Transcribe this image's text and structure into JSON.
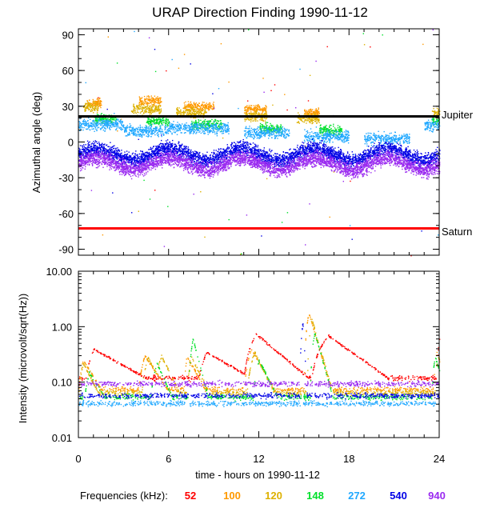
{
  "chart_data": [
    {
      "type": "scatter",
      "title": "URAP Direction Finding  1990-11-12",
      "xlabel": "",
      "ylabel": "Azimuthal angle (deg)",
      "xlim": [
        0,
        24
      ],
      "ylim": [
        -95,
        95
      ],
      "y_ticks": [
        90,
        60,
        30,
        0,
        -30,
        -60,
        -90
      ],
      "reference_lines": [
        {
          "name": "Jupiter",
          "value": 21.5,
          "color": "#000000"
        },
        {
          "name": "Saturn",
          "value": -72.5,
          "color": "#ff0000"
        }
      ],
      "series": [
        {
          "name": "52",
          "color": "#ff0000",
          "centers": [
            [
              0,
              24,
              0
            ]
          ],
          "spread": 0
        },
        {
          "name": "100",
          "color": "#ff9900",
          "centers": [
            [
              0.5,
              1,
              33
            ],
            [
              4,
              1.5,
              35
            ],
            [
              7,
              2,
              30
            ],
            [
              11,
              1.5,
              28
            ],
            [
              15,
              1,
              25
            ]
          ],
          "spread": 5
        },
        {
          "name": "120",
          "color": "#ddb100",
          "centers": [
            [
              0.3,
              1,
              30
            ],
            [
              3.5,
              2,
              28
            ],
            [
              6.5,
              2,
              25
            ],
            [
              11,
              1.5,
              22
            ],
            [
              14.5,
              1.5,
              20
            ],
            [
              23.5,
              0.5,
              25
            ]
          ],
          "spread": 6
        },
        {
          "name": "148",
          "color": "#00e02a",
          "centers": [
            [
              1,
              1.5,
              20
            ],
            [
              4.5,
              1.5,
              18
            ],
            [
              7.5,
              2,
              15
            ],
            [
              12,
              1.5,
              12
            ],
            [
              16,
              1.5,
              10
            ],
            [
              23.5,
              0.5,
              18
            ]
          ],
          "spread": 6
        },
        {
          "name": "272",
          "color": "#20a8ff",
          "centers": [
            [
              0,
              3,
              15
            ],
            [
              3,
              3,
              10
            ],
            [
              6,
              4,
              12
            ],
            [
              11,
              3,
              8
            ],
            [
              15,
              3,
              5
            ],
            [
              19,
              3,
              3
            ],
            [
              23,
              1,
              15
            ]
          ],
          "spread": 7
        },
        {
          "name": "540",
          "color": "#0000e6",
          "centers": [
            [
              0,
              24,
              -10
            ]
          ],
          "spread": 9
        },
        {
          "name": "940",
          "color": "#9a2af0",
          "centers": [
            [
              0,
              24,
              -18
            ]
          ],
          "spread": 9
        }
      ]
    },
    {
      "type": "scatter",
      "title": "",
      "xlabel": "time - hours on 1990-11-12",
      "ylabel": "Intensity (microvolt/sqrt(Hz))",
      "xlim": [
        0,
        24
      ],
      "ylim": [
        0.01,
        10
      ],
      "yscale": "log",
      "x_ticks": [
        0,
        6,
        12,
        18,
        24
      ],
      "y_ticks": [
        "10.00",
        "1.00",
        "0.10",
        "0.01"
      ],
      "series": [
        {
          "name": "52",
          "color": "#ff0000",
          "bursts": [
            [
              0.5,
              1.0,
              0.4,
              3.5
            ],
            [
              8.0,
              8.5,
              0.35,
              3.0
            ],
            [
              11.0,
              11.8,
              0.75,
              3.5
            ],
            [
              15.5,
              16.6,
              0.7,
              4.0
            ],
            [
              23.8,
              24.0,
              0.6,
              0.5
            ]
          ],
          "baseline": 0.12
        },
        {
          "name": "100",
          "color": "#ff9900",
          "bursts": [
            [
              0.0,
              0.3,
              0.25,
              1.2
            ],
            [
              4.0,
              4.4,
              0.3,
              1.5
            ],
            [
              7.0,
              7.2,
              0.3,
              1.2
            ],
            [
              11.0,
              11.5,
              0.4,
              1.5
            ],
            [
              15.0,
              15.3,
              1.8,
              1.5
            ],
            [
              23.6,
              23.8,
              0.35,
              0.8
            ]
          ],
          "baseline": 0.075
        },
        {
          "name": "120",
          "color": "#ddb100",
          "bursts": [
            [
              0.0,
              0.3,
              0.22,
              1.0
            ],
            [
              4.2,
              4.6,
              0.28,
              1.3
            ],
            [
              5.0,
              5.5,
              0.3,
              1.2
            ],
            [
              7.2,
              7.5,
              0.28,
              1.2
            ],
            [
              11.2,
              11.7,
              0.35,
              1.3
            ],
            [
              15.2,
              15.5,
              1.4,
              1.4
            ],
            [
              23.7,
              23.9,
              0.3,
              0.8
            ]
          ],
          "baseline": 0.065
        },
        {
          "name": "148",
          "color": "#00e02a",
          "bursts": [
            [
              0.4,
              0.7,
              0.15,
              1.0
            ],
            [
              4.8,
              5.2,
              0.22,
              1.0
            ],
            [
              7.3,
              7.6,
              0.6,
              1.0
            ],
            [
              11.6,
              12.0,
              0.25,
              1.2
            ],
            [
              15.4,
              15.7,
              0.8,
              1.2
            ],
            [
              23.5,
              23.7,
              0.3,
              0.8
            ]
          ],
          "baseline": 0.055
        },
        {
          "name": "272",
          "color": "#20a8ff",
          "bursts": [],
          "baseline": 0.042
        },
        {
          "name": "540",
          "color": "#0000e6",
          "bursts": [
            [
              14.7,
              14.9,
              1.2,
              0.3
            ]
          ],
          "baseline": 0.058
        },
        {
          "name": "940",
          "color": "#9a2af0",
          "bursts": [],
          "baseline": 0.095
        }
      ]
    }
  ],
  "legend": {
    "label": "Frequencies (kHz):",
    "entries": [
      {
        "text": "52",
        "color": "#ff0000"
      },
      {
        "text": "100",
        "color": "#ff9900"
      },
      {
        "text": "120",
        "color": "#ddb100"
      },
      {
        "text": "148",
        "color": "#00e02a"
      },
      {
        "text": "272",
        "color": "#20a8ff"
      },
      {
        "text": "540",
        "color": "#0000e6"
      },
      {
        "text": "940",
        "color": "#9a2af0"
      }
    ]
  }
}
